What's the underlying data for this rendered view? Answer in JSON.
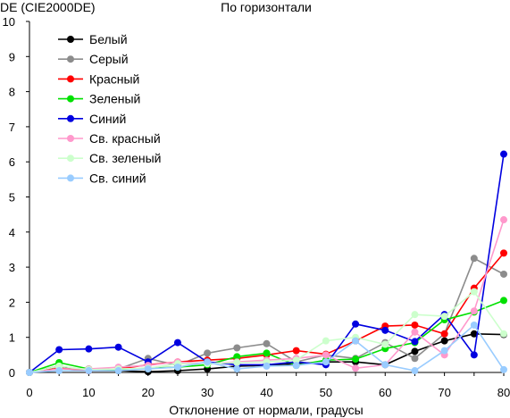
{
  "chart_data": {
    "type": "line",
    "title": "По горизонтали",
    "ylabel": "DE (CIE2000DE)",
    "xlabel": "Отклонение от нормали, градусы",
    "x": [
      0,
      5,
      10,
      15,
      20,
      25,
      30,
      35,
      40,
      45,
      50,
      55,
      60,
      65,
      70,
      75,
      80
    ],
    "xticks": [
      0,
      10,
      20,
      30,
      40,
      50,
      60,
      70,
      80
    ],
    "yticks": [
      0,
      1,
      2,
      3,
      4,
      5,
      6,
      7,
      8,
      9,
      10
    ],
    "xlim": [
      0,
      80
    ],
    "ylim": [
      0,
      10
    ],
    "grid": false,
    "legend_position": "top-left",
    "series": [
      {
        "name": "Белый",
        "color": "#000000",
        "values": [
          0,
          0.18,
          0.05,
          0.05,
          0.02,
          0.05,
          0.1,
          0.18,
          0.2,
          0.25,
          0.3,
          0.3,
          0.22,
          0.6,
          0.9,
          1.1,
          1.08
        ]
      },
      {
        "name": "Серый",
        "color": "#8c8c8c",
        "values": [
          0,
          0.12,
          0.05,
          0.1,
          0.4,
          0.2,
          0.55,
          0.7,
          0.82,
          0.3,
          0.5,
          0.4,
          0.85,
          0.4,
          1.1,
          3.25,
          2.8
        ]
      },
      {
        "name": "Красный",
        "color": "#ff0000",
        "values": [
          0,
          0.12,
          0.05,
          0.1,
          0.22,
          0.3,
          0.35,
          0.4,
          0.5,
          0.62,
          0.52,
          0.9,
          1.32,
          1.35,
          1.1,
          2.4,
          3.4
        ]
      },
      {
        "name": "Зеленый",
        "color": "#00e000",
        "values": [
          0,
          0.28,
          0.1,
          0.08,
          0.12,
          0.15,
          0.22,
          0.45,
          0.55,
          0.2,
          0.35,
          0.38,
          0.68,
          0.85,
          1.5,
          1.72,
          2.05
        ]
      },
      {
        "name": "Синий",
        "color": "#0000e0",
        "values": [
          0,
          0.65,
          0.67,
          0.72,
          0.3,
          0.85,
          0.3,
          0.22,
          0.22,
          0.3,
          0.22,
          1.38,
          1.2,
          0.88,
          1.65,
          0.5,
          6.22
        ]
      },
      {
        "name": "Св. красный",
        "color": "#ff99cc",
        "values": [
          0,
          0.1,
          0.1,
          0.15,
          0.2,
          0.3,
          0.25,
          0.3,
          0.35,
          0.4,
          0.5,
          0.12,
          0.22,
          1.15,
          0.5,
          1.75,
          4.35
        ]
      },
      {
        "name": "Св. зеленый",
        "color": "#ccffcc",
        "values": [
          0,
          0.18,
          0.08,
          0.1,
          0.12,
          0.25,
          0.25,
          0.28,
          0.3,
          0.35,
          0.9,
          1.0,
          0.8,
          1.65,
          1.6,
          2.3,
          1.1
        ]
      },
      {
        "name": "Св. синий",
        "color": "#99ccff",
        "values": [
          0,
          0.05,
          0.05,
          0.05,
          0.1,
          0.15,
          0.3,
          0.1,
          0.18,
          0.2,
          0.3,
          0.9,
          0.22,
          0.05,
          0.62,
          1.35,
          0.08
        ]
      }
    ]
  }
}
